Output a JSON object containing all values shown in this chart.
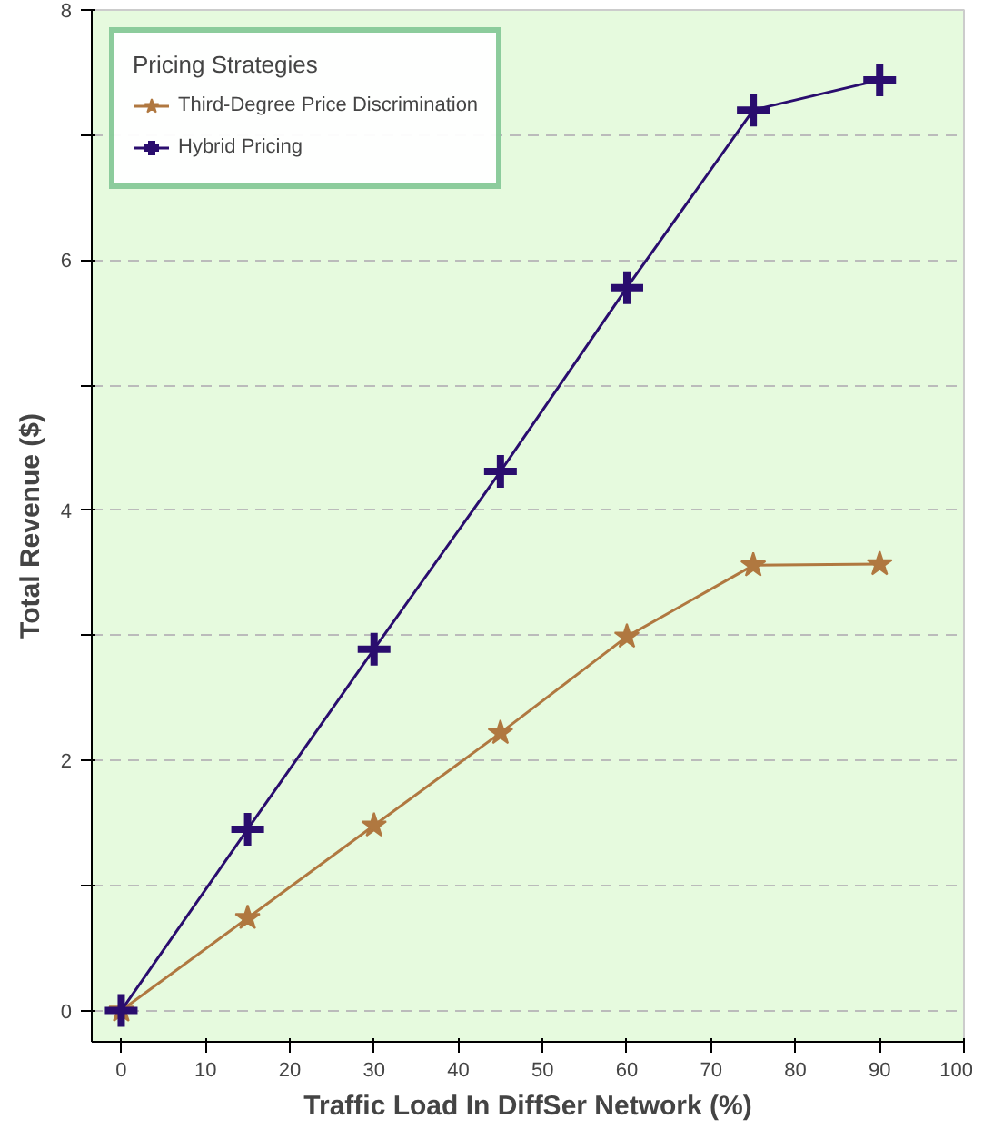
{
  "chart_data": {
    "type": "line",
    "xlabel": "Traffic Load In DiffSer Network (%)",
    "ylabel": "Total Revenue ($)",
    "legend_title": "Pricing Strategies",
    "x": [
      0,
      15,
      30,
      45,
      60,
      75,
      90
    ],
    "series": [
      {
        "name": "Third-Degree Price Discrimination",
        "color": "#b07840",
        "marker": "star",
        "values": [
          0,
          0.74,
          1.48,
          2.22,
          2.99,
          3.56,
          3.57
        ]
      },
      {
        "name": "Hybrid Pricing",
        "color": "#2a0d6e",
        "marker": "cross",
        "values": [
          0,
          1.45,
          2.89,
          4.31,
          5.78,
          7.2,
          7.44
        ]
      }
    ],
    "xlim": [
      -3.5,
      100
    ],
    "xticks": [
      0,
      10,
      20,
      30,
      40,
      50,
      60,
      70,
      80,
      90,
      100
    ],
    "ylim": [
      -0.25,
      8
    ],
    "yticks": [
      0,
      {
        "value": 1,
        "label": null
      },
      2,
      {
        "value": 3,
        "label": null
      },
      4,
      {
        "value": 5,
        "label": null
      },
      6,
      {
        "value": 7,
        "label": null
      },
      8
    ],
    "grid": "y",
    "legend": "top left",
    "line_style": "solid"
  }
}
